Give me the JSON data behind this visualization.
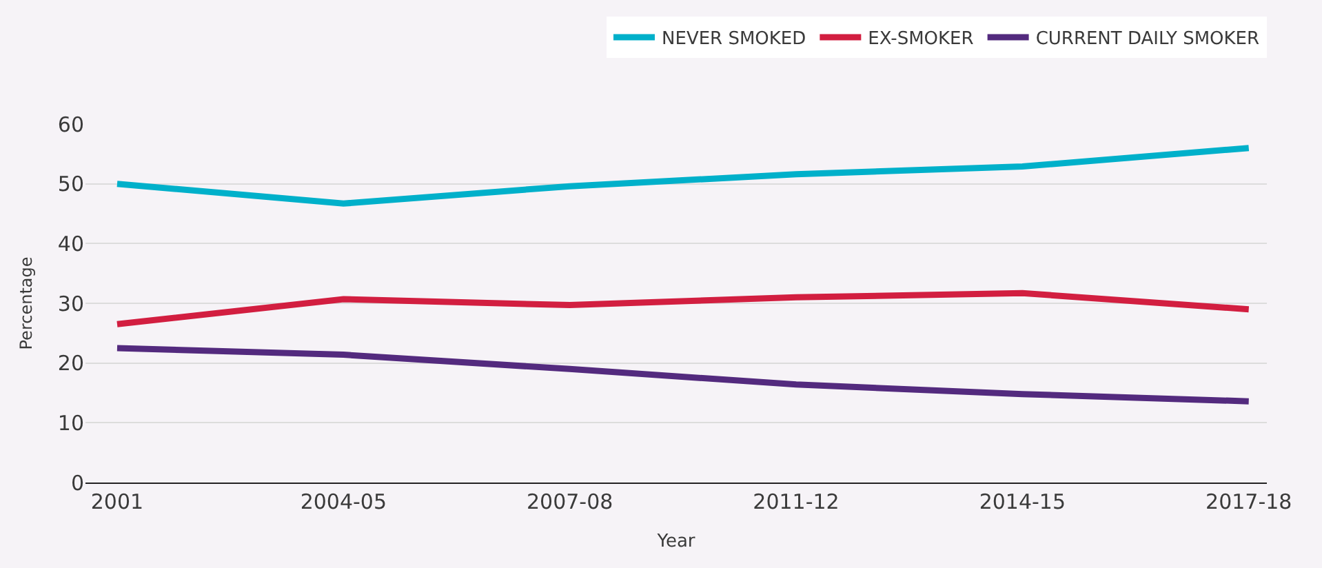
{
  "chart_data": {
    "type": "line",
    "xlabel": "Year",
    "ylabel": "Percentage",
    "categories": [
      "2001",
      "2004-05",
      "2007-08",
      "2011-12",
      "2014-15",
      "2017-18"
    ],
    "series": [
      {
        "name": "NEVER SMOKED",
        "color": "#00b0ca",
        "values": [
          50.0,
          46.7,
          49.6,
          51.6,
          52.9,
          56.0
        ]
      },
      {
        "name": "EX-SMOKER",
        "color": "#d21e40",
        "values": [
          26.5,
          30.7,
          29.7,
          31.0,
          31.7,
          29.0
        ]
      },
      {
        "name": "CURRENT DAILY SMOKER",
        "color": "#532a7e",
        "values": [
          22.5,
          21.4,
          19.0,
          16.4,
          14.8,
          13.6
        ]
      }
    ],
    "ylim": [
      0,
      60
    ],
    "yticks": [
      0,
      10,
      20,
      30,
      40,
      50,
      60
    ],
    "grid": "y",
    "legend": "top right",
    "marker": "none",
    "line_style": "solid"
  }
}
